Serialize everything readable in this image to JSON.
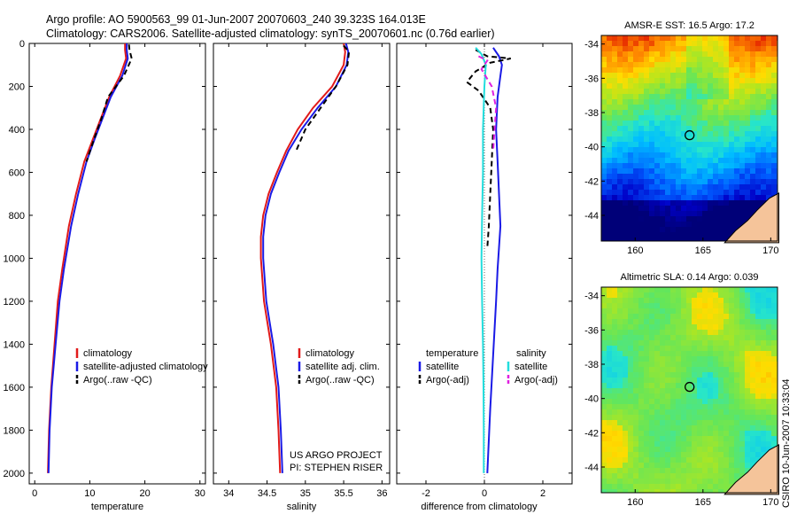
{
  "header": {
    "line1": "Argo profile: AO 5900563_99 01-Jun-2007 20070603_240 39.323S 164.013E",
    "line2": "Climatology: CARS2006. Satellite-adjusted climatology: synTS_20070601.nc (0.76d earlier)"
  },
  "side_label": "CSIRO 10-Jun-2007 10:33:04",
  "colors": {
    "climatology": "#e11a1a",
    "satellite": "#1a1ae6",
    "argo": "#000000",
    "sal_satellite": "#22dddd",
    "sal_argo": "#e020e0"
  },
  "chart_data": [
    {
      "type": "line",
      "name": "temperature-profile",
      "xlabel": "temperature",
      "ylabel": "",
      "xlim": [
        -1,
        31
      ],
      "ylim": [
        2050,
        0
      ],
      "xticks": [
        "0",
        "10",
        "20",
        "30"
      ],
      "xtick_values": [
        0,
        10,
        20,
        30
      ],
      "yticks": [
        "0",
        "200",
        "400",
        "600",
        "800",
        "1000",
        "1200",
        "1400",
        "1600",
        "1800",
        "2000"
      ],
      "ytick_values": [
        0,
        200,
        400,
        600,
        800,
        1000,
        1200,
        1400,
        1600,
        1800,
        2000
      ],
      "series": [
        {
          "name": "climatology",
          "style": "solid",
          "color_key": "climatology",
          "x": [
            16.4,
            16.4,
            16.6,
            15.5,
            13.5,
            12.0,
            10.5,
            9.0,
            7.5,
            6.2,
            5.0,
            4.2,
            3.6,
            3.0,
            2.6,
            2.4
          ],
          "y": [
            0,
            30,
            70,
            150,
            250,
            350,
            450,
            550,
            700,
            850,
            1050,
            1200,
            1400,
            1600,
            1800,
            2000
          ]
        },
        {
          "name": "satellite-adjusted climatology",
          "style": "solid",
          "color_key": "satellite",
          "x": [
            16.7,
            16.7,
            16.9,
            15.9,
            13.8,
            12.3,
            10.8,
            9.4,
            7.9,
            6.6,
            5.3,
            4.5,
            3.8,
            3.1,
            2.7,
            2.5
          ],
          "y": [
            0,
            30,
            70,
            150,
            250,
            350,
            450,
            550,
            700,
            850,
            1050,
            1200,
            1400,
            1600,
            1800,
            2000
          ]
        },
        {
          "name": "Argo(..raw -QC)",
          "style": "dashed",
          "color_key": "argo",
          "x": [
            17.1,
            17.2,
            17.6,
            16.2,
            13.3,
            12.1,
            10.7,
            9.4
          ],
          "y": [
            5,
            30,
            70,
            150,
            250,
            350,
            450,
            550
          ]
        }
      ],
      "legend": {
        "position": "bottom-right",
        "items": [
          "climatology",
          "satellite-adjusted climatology",
          "Argo(..raw -QC)"
        ]
      }
    },
    {
      "type": "line",
      "name": "salinity-profile",
      "xlabel": "salinity",
      "xlim": [
        33.8,
        36.1
      ],
      "ylim": [
        2050,
        0
      ],
      "xticks": [
        "34",
        "34.5",
        "35",
        "35.5",
        "36"
      ],
      "xtick_values": [
        34,
        34.5,
        35,
        35.5,
        36
      ],
      "series": [
        {
          "name": "climatology",
          "style": "solid",
          "color_key": "climatology",
          "x": [
            35.5,
            35.52,
            35.5,
            35.35,
            35.1,
            34.9,
            34.75,
            34.63,
            34.52,
            34.45,
            34.42,
            34.42,
            34.46,
            34.55,
            34.62,
            34.65,
            34.67
          ],
          "y": [
            0,
            40,
            100,
            200,
            300,
            400,
            500,
            600,
            700,
            800,
            900,
            1000,
            1200,
            1400,
            1600,
            1800,
            2000
          ]
        },
        {
          "name": "satellite adj. clim.",
          "style": "solid",
          "color_key": "satellite",
          "x": [
            35.53,
            35.56,
            35.54,
            35.4,
            35.16,
            34.95,
            34.78,
            34.66,
            34.55,
            34.48,
            34.45,
            34.45,
            34.49,
            34.58,
            34.65,
            34.68,
            34.7
          ],
          "y": [
            0,
            40,
            100,
            200,
            300,
            400,
            500,
            600,
            700,
            800,
            900,
            1000,
            1200,
            1400,
            1600,
            1800,
            2000
          ]
        },
        {
          "name": "Argo(..raw -QC)",
          "style": "dashed",
          "color_key": "argo",
          "x": [
            35.5,
            35.57,
            35.55,
            35.4,
            35.2,
            35.0,
            34.88
          ],
          "y": [
            10,
            40,
            100,
            200,
            300,
            400,
            500
          ]
        }
      ],
      "legend": {
        "position": "bottom-right",
        "items": [
          "climatology",
          "satellite adj. clim.",
          "Argo(..raw -QC)"
        ]
      },
      "annotation": [
        "US ARGO PROJECT",
        "PI: STEPHEN RISER"
      ]
    },
    {
      "type": "line",
      "name": "difference-profile",
      "xlabel": "difference from climatology",
      "xlim": [
        -3,
        3
      ],
      "ylim": [
        2050,
        0
      ],
      "xticks": [
        "-2",
        "0",
        "2"
      ],
      "xtick_values": [
        -2,
        0,
        2
      ],
      "series": [
        {
          "name": "temperature satellite",
          "style": "solid",
          "color_key": "satellite",
          "x": [
            0.3,
            0.5,
            0.6,
            0.55,
            0.45,
            0.4,
            0.45,
            0.5,
            0.55,
            0.5,
            0.45,
            0.4,
            0.3,
            0.2,
            0.1
          ],
          "y": [
            20,
            60,
            100,
            150,
            250,
            400,
            550,
            700,
            850,
            950,
            1050,
            1200,
            1450,
            1700,
            2000
          ]
        },
        {
          "name": "temperature Argo(-adj)",
          "style": "dashed",
          "color_key": "argo",
          "x": [
            -0.3,
            0.1,
            0.9,
            0.2,
            -0.3,
            -0.6,
            -0.2,
            0.2,
            0.3,
            0.25,
            0.2,
            0.15,
            0.1
          ],
          "y": [
            30,
            60,
            70,
            90,
            130,
            180,
            220,
            300,
            400,
            550,
            700,
            850,
            950
          ]
        },
        {
          "name": "salinity satellite",
          "style": "solid",
          "color_key": "sal_satellite",
          "x": [
            -0.3,
            -0.1,
            0.05,
            0.0,
            -0.05,
            -0.05,
            -0.08,
            -0.1,
            -0.08,
            -0.05,
            -0.03,
            -0.02,
            -0.02
          ],
          "y": [
            20,
            50,
            100,
            200,
            400,
            600,
            800,
            1000,
            1200,
            1400,
            1600,
            1800,
            2000
          ]
        },
        {
          "name": "salinity Argo(-adj)",
          "style": "dashed",
          "color_key": "sal_argo",
          "x": [
            -0.2,
            0.1,
            -0.1,
            0.25,
            0.4,
            0.35,
            0.3
          ],
          "y": [
            60,
            80,
            120,
            200,
            300,
            400,
            500
          ]
        }
      ],
      "legend": {
        "position": "bottom",
        "col1_title": "temperature",
        "col2_title": "salinity",
        "col1_items": [
          "satellite",
          "Argo(-adj)"
        ],
        "col2_items": [
          "satellite",
          "Argo(-adj)"
        ]
      }
    },
    {
      "type": "heatmap",
      "name": "amsr-sst-map",
      "title": "AMSR-E SST: 16.5 Argo: 17.2",
      "xlim": [
        157.5,
        170.5
      ],
      "ylim": [
        -45.5,
        -33.5
      ],
      "xticks": [
        "160",
        "165",
        "170"
      ],
      "xtick_values": [
        160,
        165,
        170
      ],
      "yticks": [
        "-34",
        "-36",
        "-38",
        "-40",
        "-42",
        "-44"
      ],
      "ytick_values": [
        -34,
        -36,
        -38,
        -40,
        -42,
        -44
      ],
      "marker": {
        "lon": 164.013,
        "lat": -39.323
      }
    },
    {
      "type": "heatmap",
      "name": "altimetric-sla-map",
      "title": "Altimetric SLA: 0.14 Argo: 0.039",
      "xlim": [
        157.5,
        170.5
      ],
      "ylim": [
        -45.5,
        -33.5
      ],
      "xticks": [
        "160",
        "165",
        "170"
      ],
      "xtick_values": [
        160,
        165,
        170
      ],
      "yticks": [
        "-34",
        "-36",
        "-38",
        "-40",
        "-42",
        "-44"
      ],
      "ytick_values": [
        -34,
        -36,
        -38,
        -40,
        -42,
        -44
      ],
      "marker": {
        "lon": 164.013,
        "lat": -39.323
      }
    }
  ]
}
